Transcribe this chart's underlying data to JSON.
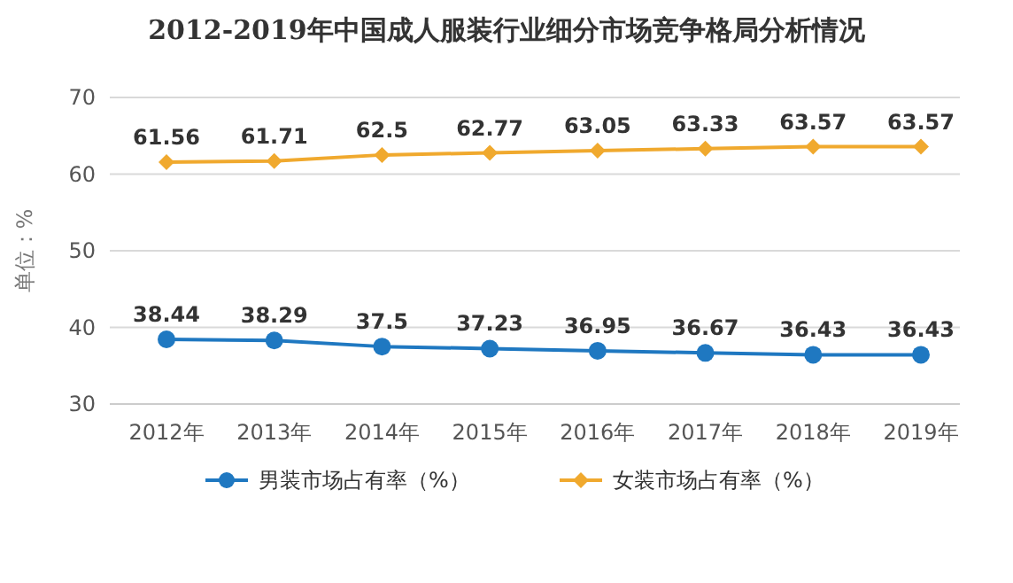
{
  "chart_data": {
    "type": "line",
    "title": "2012-2019年中国成人服装行业细分市场竞争格局分析情况",
    "ylabel": "单位：%",
    "categories": [
      "2012年",
      "2013年",
      "2014年",
      "2015年",
      "2016年",
      "2017年",
      "2018年",
      "2019年"
    ],
    "series": [
      {
        "name": "男装市场占有率（%）",
        "color": "#1f78c1",
        "marker": "circle",
        "values": [
          38.44,
          38.29,
          37.5,
          37.23,
          36.95,
          36.67,
          36.43,
          36.43
        ]
      },
      {
        "name": "女装市场占有率（%）",
        "color": "#f0a92e",
        "marker": "diamond",
        "values": [
          61.56,
          61.71,
          62.5,
          62.77,
          63.05,
          63.33,
          63.57,
          63.57
        ]
      }
    ],
    "ylim": [
      30,
      70
    ],
    "yticks": [
      30,
      40,
      50,
      60,
      70
    ],
    "grid": "y",
    "legend": "bottom",
    "data_labels": true,
    "line_style": "solid"
  }
}
